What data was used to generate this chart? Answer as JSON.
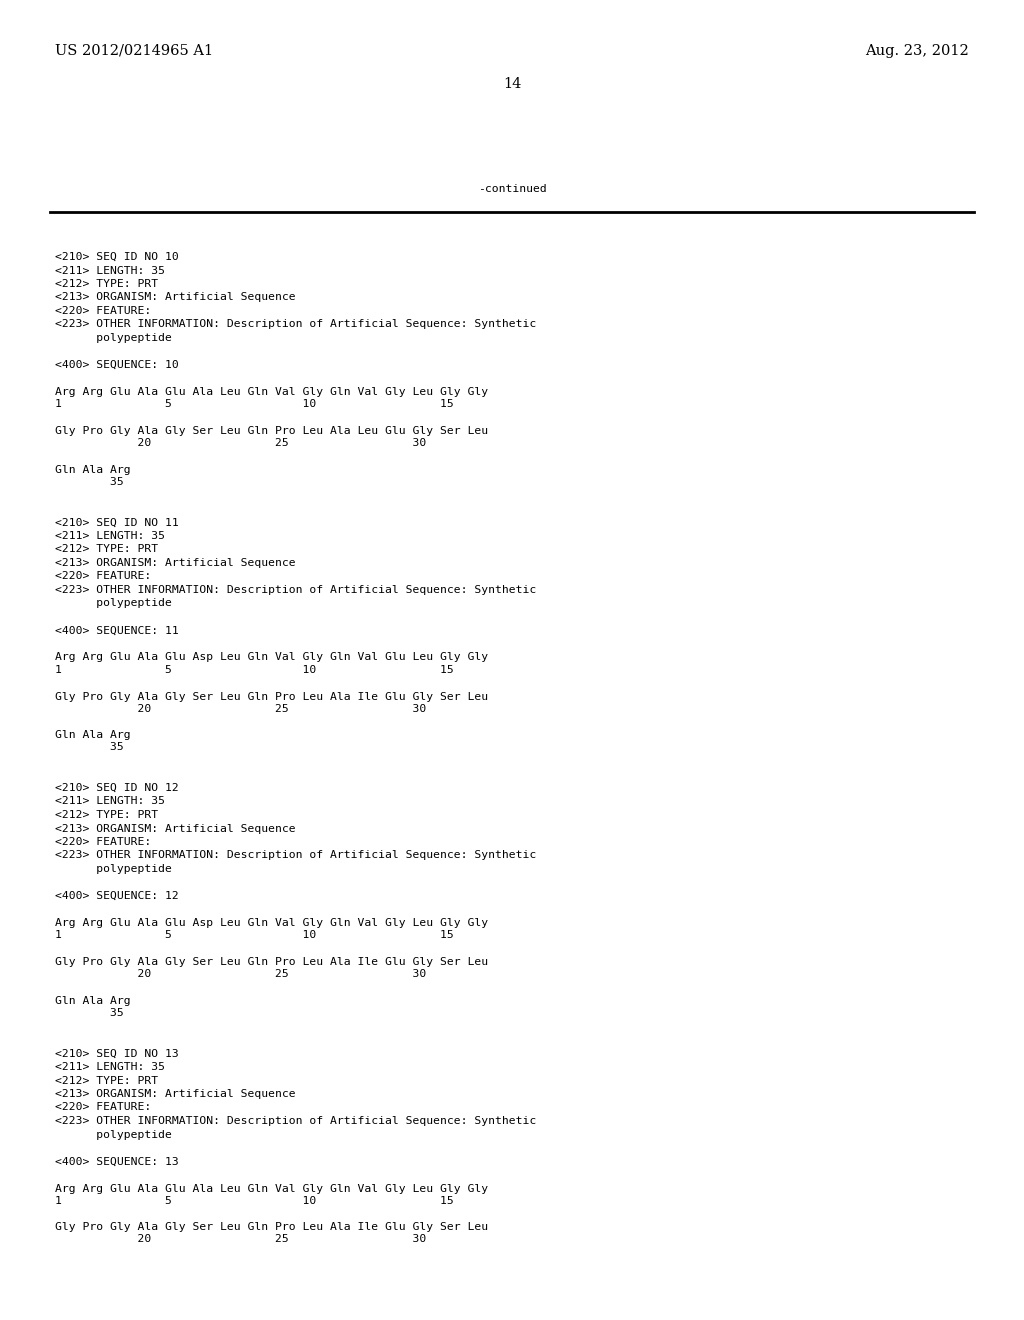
{
  "bg_color": "#ffffff",
  "header_left": "US 2012/0214965 A1",
  "header_right": "Aug. 23, 2012",
  "page_number": "14",
  "continued_text": "-continued",
  "font_size_header": 10.5,
  "font_size_mono": 8.2,
  "content_blocks": [
    {
      "type": "metadata",
      "lines": [
        "<210> SEQ ID NO 10",
        "<211> LENGTH: 35",
        "<212> TYPE: PRT",
        "<213> ORGANISM: Artificial Sequence",
        "<220> FEATURE:",
        "<223> OTHER INFORMATION: Description of Artificial Sequence: Synthetic",
        "      polypeptide"
      ]
    },
    {
      "type": "blank"
    },
    {
      "type": "sequence_label",
      "line": "<400> SEQUENCE: 10"
    },
    {
      "type": "blank"
    },
    {
      "type": "sequence_row",
      "seq": "Arg Arg Glu Ala Glu Ala Leu Gln Val Gly Gln Val Gly Leu Gly Gly",
      "nums": "1               5                   10                  15"
    },
    {
      "type": "blank"
    },
    {
      "type": "sequence_row",
      "seq": "Gly Pro Gly Ala Gly Ser Leu Gln Pro Leu Ala Leu Glu Gly Ser Leu",
      "nums": "            20                  25                  30"
    },
    {
      "type": "blank"
    },
    {
      "type": "sequence_row",
      "seq": "Gln Ala Arg",
      "nums": "        35"
    },
    {
      "type": "blank"
    },
    {
      "type": "blank"
    },
    {
      "type": "metadata",
      "lines": [
        "<210> SEQ ID NO 11",
        "<211> LENGTH: 35",
        "<212> TYPE: PRT",
        "<213> ORGANISM: Artificial Sequence",
        "<220> FEATURE:",
        "<223> OTHER INFORMATION: Description of Artificial Sequence: Synthetic",
        "      polypeptide"
      ]
    },
    {
      "type": "blank"
    },
    {
      "type": "sequence_label",
      "line": "<400> SEQUENCE: 11"
    },
    {
      "type": "blank"
    },
    {
      "type": "sequence_row",
      "seq": "Arg Arg Glu Ala Glu Asp Leu Gln Val Gly Gln Val Glu Leu Gly Gly",
      "nums": "1               5                   10                  15"
    },
    {
      "type": "blank"
    },
    {
      "type": "sequence_row",
      "seq": "Gly Pro Gly Ala Gly Ser Leu Gln Pro Leu Ala Ile Glu Gly Ser Leu",
      "nums": "            20                  25                  30"
    },
    {
      "type": "blank"
    },
    {
      "type": "sequence_row",
      "seq": "Gln Ala Arg",
      "nums": "        35"
    },
    {
      "type": "blank"
    },
    {
      "type": "blank"
    },
    {
      "type": "metadata",
      "lines": [
        "<210> SEQ ID NO 12",
        "<211> LENGTH: 35",
        "<212> TYPE: PRT",
        "<213> ORGANISM: Artificial Sequence",
        "<220> FEATURE:",
        "<223> OTHER INFORMATION: Description of Artificial Sequence: Synthetic",
        "      polypeptide"
      ]
    },
    {
      "type": "blank"
    },
    {
      "type": "sequence_label",
      "line": "<400> SEQUENCE: 12"
    },
    {
      "type": "blank"
    },
    {
      "type": "sequence_row",
      "seq": "Arg Arg Glu Ala Glu Asp Leu Gln Val Gly Gln Val Gly Leu Gly Gly",
      "nums": "1               5                   10                  15"
    },
    {
      "type": "blank"
    },
    {
      "type": "sequence_row",
      "seq": "Gly Pro Gly Ala Gly Ser Leu Gln Pro Leu Ala Ile Glu Gly Ser Leu",
      "nums": "            20                  25                  30"
    },
    {
      "type": "blank"
    },
    {
      "type": "sequence_row",
      "seq": "Gln Ala Arg",
      "nums": "        35"
    },
    {
      "type": "blank"
    },
    {
      "type": "blank"
    },
    {
      "type": "metadata",
      "lines": [
        "<210> SEQ ID NO 13",
        "<211> LENGTH: 35",
        "<212> TYPE: PRT",
        "<213> ORGANISM: Artificial Sequence",
        "<220> FEATURE:",
        "<223> OTHER INFORMATION: Description of Artificial Sequence: Synthetic",
        "      polypeptide"
      ]
    },
    {
      "type": "blank"
    },
    {
      "type": "sequence_label",
      "line": "<400> SEQUENCE: 13"
    },
    {
      "type": "blank"
    },
    {
      "type": "sequence_row",
      "seq": "Arg Arg Glu Ala Glu Ala Leu Gln Val Gly Gln Val Gly Leu Gly Gly",
      "nums": "1               5                   10                  15"
    },
    {
      "type": "blank"
    },
    {
      "type": "sequence_row",
      "seq": "Gly Pro Gly Ala Gly Ser Leu Gln Pro Leu Ala Ile Glu Gly Ser Leu",
      "nums": "            20                  25                  30"
    }
  ]
}
